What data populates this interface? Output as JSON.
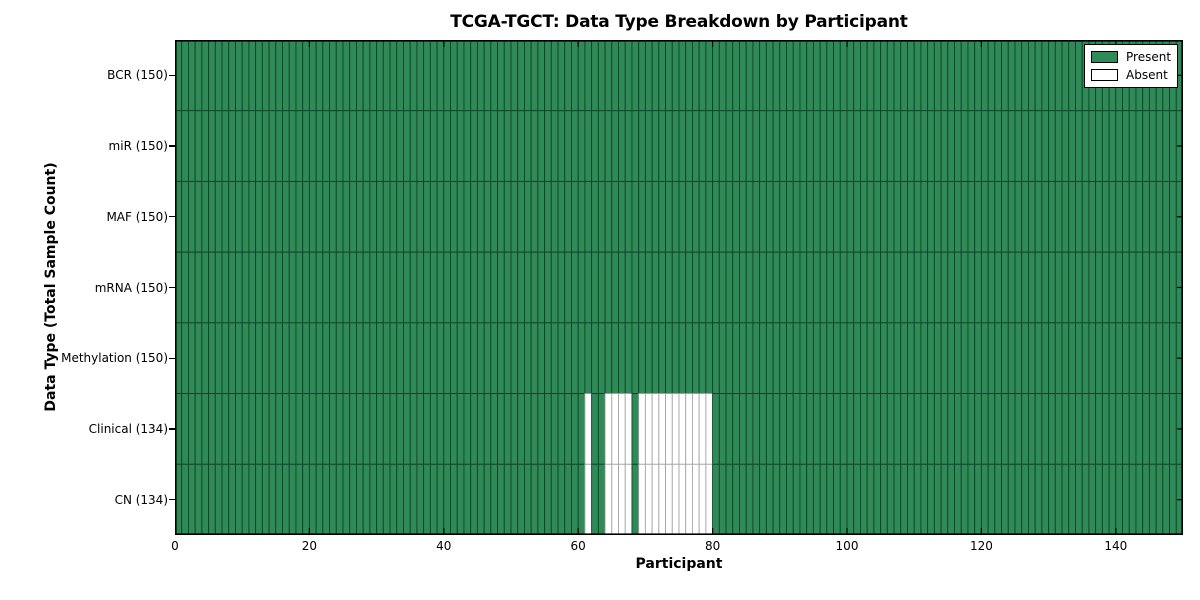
{
  "chart_data": {
    "type": "heatmap",
    "title": "TCGA-TGCT: Data Type Breakdown by Participant",
    "xlabel": "Participant",
    "ylabel": "Data Type (Total Sample Count)",
    "n_participants": 150,
    "x_range": [
      0,
      150
    ],
    "x_ticks": [
      0,
      20,
      40,
      60,
      80,
      100,
      120,
      140
    ],
    "rows": [
      {
        "label": "BCR (150)",
        "data_type": "BCR",
        "total_samples": 150,
        "absent_participants": []
      },
      {
        "label": "miR (150)",
        "data_type": "miR",
        "total_samples": 150,
        "absent_participants": []
      },
      {
        "label": "MAF (150)",
        "data_type": "MAF",
        "total_samples": 150,
        "absent_participants": []
      },
      {
        "label": "mRNA (150)",
        "data_type": "mRNA",
        "total_samples": 150,
        "absent_participants": []
      },
      {
        "label": "Methylation (150)",
        "data_type": "Methylation",
        "total_samples": 150,
        "absent_participants": []
      },
      {
        "label": "Clinical (134)",
        "data_type": "Clinical",
        "total_samples": 134,
        "absent_participants": [
          61,
          64,
          65,
          66,
          67,
          69,
          70,
          71,
          72,
          73,
          74,
          75,
          76,
          77,
          78,
          79
        ]
      },
      {
        "label": "CN (134)",
        "data_type": "CN",
        "total_samples": 134,
        "absent_participants": [
          61,
          64,
          65,
          66,
          67,
          69,
          70,
          71,
          72,
          73,
          74,
          75,
          76,
          77,
          78,
          79
        ]
      }
    ],
    "legend": {
      "position": "upper right",
      "items": [
        {
          "label": "Present",
          "color": "#2e8b57"
        },
        {
          "label": "Absent",
          "color": "#ffffff"
        }
      ]
    },
    "colors": {
      "present": "#2e8b57",
      "absent": "#ffffff",
      "grid_on_present": "#15402a",
      "grid_on_absent": "#a6a6a6",
      "axis_border": "#000000",
      "tick": "#000000"
    },
    "grid": true
  }
}
